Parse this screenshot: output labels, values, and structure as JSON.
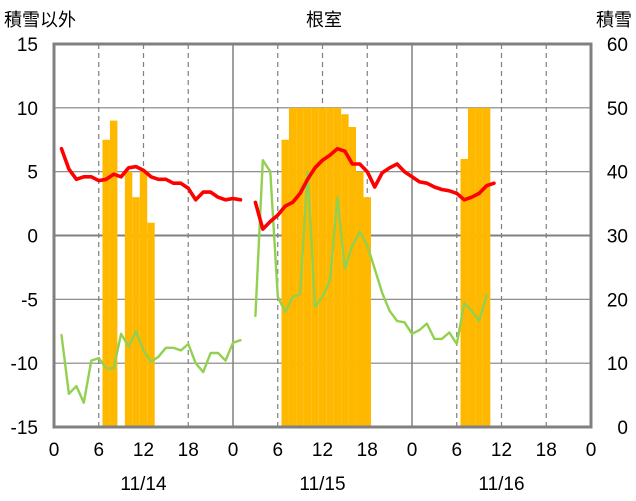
{
  "chart_data": {
    "type": "bar+line",
    "title": "根室",
    "left_axis_label": "積雪以外",
    "right_axis_label": "積雪",
    "left_ylim": [
      -15,
      15
    ],
    "left_ticks": [
      15,
      10,
      5,
      0,
      -5,
      -10,
      -15
    ],
    "right_ylim": [
      0,
      60
    ],
    "right_ticks": [
      60,
      50,
      40,
      30,
      20,
      10,
      0
    ],
    "x_hour_labels": [
      "0",
      "6",
      "12",
      "18",
      "0",
      "6",
      "12",
      "18",
      "0",
      "6",
      "12",
      "18",
      "0"
    ],
    "date_labels": [
      "11/14",
      "11/15",
      "11/16"
    ],
    "grid": true,
    "colors": {
      "snow_depth": "#FFB800",
      "red_line": "#FF0000",
      "green_line": "#92D050",
      "purple_line": "#7030A0",
      "frame": "#808080",
      "grid": "#808080"
    },
    "series": [
      {
        "role": "snow_depth",
        "axis": "right",
        "points": [
          [
            7,
            45
          ],
          [
            8,
            48
          ],
          [
            9,
            0
          ],
          [
            10,
            40
          ],
          [
            11,
            36
          ],
          [
            12,
            40
          ],
          [
            13,
            32
          ],
          [
            14,
            0
          ],
          [
            30,
            0
          ],
          [
            31,
            45
          ],
          [
            32,
            50
          ],
          [
            33,
            50
          ],
          [
            34,
            50
          ],
          [
            35,
            50
          ],
          [
            36,
            50
          ],
          [
            37,
            50
          ],
          [
            38,
            50
          ],
          [
            39,
            49
          ],
          [
            40,
            47
          ],
          [
            41,
            40
          ],
          [
            42,
            36
          ],
          [
            43,
            0
          ],
          [
            54,
            0
          ],
          [
            55,
            42
          ],
          [
            56,
            50
          ],
          [
            57,
            50
          ],
          [
            58,
            50
          ]
        ]
      },
      {
        "role": "red_line",
        "axis": "left",
        "segments": [
          [
            [
              1,
              6.8
            ],
            [
              2,
              5.2
            ],
            [
              3,
              4.4
            ],
            [
              4,
              4.6
            ],
            [
              5,
              4.6
            ],
            [
              6,
              4.3
            ],
            [
              7,
              4.4
            ],
            [
              8,
              4.8
            ],
            [
              9,
              4.6
            ],
            [
              10,
              5.3
            ],
            [
              11,
              5.4
            ],
            [
              12,
              5.1
            ],
            [
              13,
              4.6
            ],
            [
              14,
              4.4
            ],
            [
              15,
              4.4
            ],
            [
              16,
              4.1
            ],
            [
              17,
              4.1
            ],
            [
              18,
              3.7
            ],
            [
              19,
              2.8
            ],
            [
              20,
              3.4
            ],
            [
              21,
              3.4
            ],
            [
              22,
              3.0
            ],
            [
              23,
              2.8
            ],
            [
              24,
              2.9
            ],
            [
              25,
              2.8
            ]
          ],
          [
            [
              27,
              2.6
            ],
            [
              28,
              0.5
            ],
            [
              29,
              1.1
            ],
            [
              30,
              1.6
            ],
            [
              31,
              2.3
            ],
            [
              32,
              2.6
            ],
            [
              33,
              3.3
            ],
            [
              34,
              4.4
            ],
            [
              35,
              5.3
            ],
            [
              36,
              5.9
            ],
            [
              37,
              6.3
            ],
            [
              38,
              6.8
            ],
            [
              39,
              6.6
            ],
            [
              40,
              5.6
            ],
            [
              41,
              5.6
            ],
            [
              42,
              5.0
            ],
            [
              43,
              3.8
            ],
            [
              44,
              4.9
            ],
            [
              45,
              5.3
            ],
            [
              46,
              5.6
            ],
            [
              47,
              5.0
            ],
            [
              48,
              4.6
            ],
            [
              49,
              4.2
            ],
            [
              50,
              4.1
            ],
            [
              51,
              3.8
            ],
            [
              52,
              3.6
            ],
            [
              53,
              3.5
            ],
            [
              54,
              3.3
            ],
            [
              55,
              2.8
            ],
            [
              56,
              3.0
            ],
            [
              57,
              3.3
            ],
            [
              58,
              3.9
            ],
            [
              59,
              4.1
            ]
          ]
        ]
      },
      {
        "role": "green_line",
        "axis": "left",
        "segments": [
          [
            [
              1,
              -7.8
            ],
            [
              2,
              -12.4
            ],
            [
              3,
              -11.8
            ],
            [
              4,
              -13.1
            ],
            [
              5,
              -9.8
            ],
            [
              6,
              -9.6
            ],
            [
              7,
              -10.4
            ],
            [
              8,
              -10.4
            ],
            [
              9,
              -7.7
            ],
            [
              10,
              -8.7
            ],
            [
              11,
              -7.5
            ],
            [
              12,
              -9.0
            ],
            [
              13,
              -9.9
            ],
            [
              14,
              -9.5
            ],
            [
              15,
              -8.8
            ],
            [
              16,
              -8.8
            ],
            [
              17,
              -9.0
            ],
            [
              18,
              -8.5
            ],
            [
              19,
              -10.0
            ],
            [
              20,
              -10.7
            ],
            [
              21,
              -9.2
            ],
            [
              22,
              -9.2
            ],
            [
              23,
              -9.8
            ],
            [
              24,
              -8.4
            ],
            [
              25,
              -8.2
            ]
          ],
          [
            [
              27,
              -6.3
            ],
            [
              28,
              5.9
            ],
            [
              29,
              5.0
            ],
            [
              30,
              -4.8
            ],
            [
              31,
              -6.0
            ],
            [
              32,
              -4.8
            ],
            [
              33,
              -4.6
            ],
            [
              34,
              5.0
            ],
            [
              35,
              -5.6
            ],
            [
              36,
              -4.8
            ],
            [
              37,
              -3.5
            ],
            [
              38,
              3.0
            ],
            [
              39,
              -2.6
            ],
            [
              40,
              -0.8
            ],
            [
              41,
              0.3
            ],
            [
              42,
              -0.8
            ],
            [
              43,
              -2.6
            ],
            [
              44,
              -4.5
            ],
            [
              45,
              -5.9
            ],
            [
              46,
              -6.7
            ],
            [
              47,
              -6.8
            ],
            [
              48,
              -7.7
            ],
            [
              49,
              -7.4
            ],
            [
              50,
              -6.9
            ],
            [
              51,
              -8.1
            ],
            [
              52,
              -8.1
            ],
            [
              53,
              -7.6
            ],
            [
              54,
              -8.5
            ],
            [
              55,
              -5.3
            ],
            [
              56,
              -5.9
            ],
            [
              57,
              -6.7
            ],
            [
              58,
              -4.7
            ]
          ]
        ]
      },
      {
        "role": "purple_line",
        "axis": "left",
        "segments": [
          [
            [
              0,
              -15.0
            ],
            [
              25,
              -15.0
            ]
          ],
          [
            [
              27,
              -15.0
            ],
            [
              59,
              -15.0
            ]
          ]
        ]
      }
    ]
  }
}
